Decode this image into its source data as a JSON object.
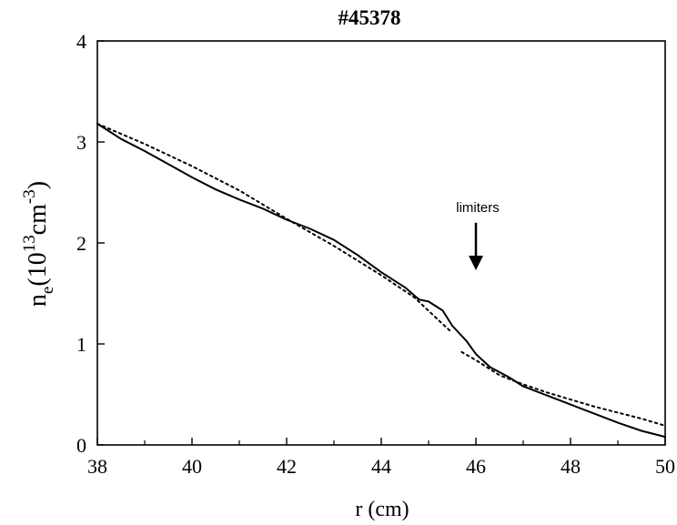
{
  "chart_data": {
    "type": "line",
    "title": "#45378",
    "xlabel": "r (cm)",
    "ylabel": {
      "base": "n",
      "sub": "e",
      "open": "(10",
      "sup1": "13",
      "unit": "cm",
      "sup2": "-3",
      "close": ")"
    },
    "xlim": [
      38,
      50
    ],
    "ylim": [
      0,
      4
    ],
    "x_ticks": [
      "38",
      "40",
      "42",
      "44",
      "46",
      "48",
      "50"
    ],
    "y_ticks": [
      "0",
      "1",
      "2",
      "3",
      "4"
    ],
    "grid": false,
    "annotation": {
      "text": "limiters",
      "arrow_x": 46,
      "arrow_from_y": 2.2,
      "arrow_to_y": 1.73
    },
    "series": [
      {
        "style": "solid",
        "color": "#000000",
        "x": [
          38.0,
          38.5,
          39.0,
          39.5,
          40.0,
          40.5,
          41.0,
          41.5,
          42.0,
          42.5,
          43.0,
          43.5,
          44.0,
          44.5,
          44.8,
          45.0,
          45.3,
          45.5,
          45.8,
          46.0,
          46.3,
          46.7,
          47.0,
          47.5,
          48.0,
          48.5,
          49.0,
          49.5,
          50.0
        ],
        "y": [
          3.18,
          3.03,
          2.91,
          2.78,
          2.65,
          2.53,
          2.43,
          2.34,
          2.23,
          2.14,
          2.03,
          1.88,
          1.71,
          1.56,
          1.44,
          1.42,
          1.33,
          1.18,
          1.03,
          0.9,
          0.77,
          0.67,
          0.58,
          0.49,
          0.4,
          0.31,
          0.22,
          0.14,
          0.08
        ]
      },
      {
        "style": "dotted",
        "color": "#000000",
        "x": [
          38.0,
          39.0,
          40.0,
          41.0,
          42.0,
          43.0,
          44.0,
          44.7,
          45.2,
          45.5
        ],
        "y": [
          3.18,
          2.98,
          2.76,
          2.52,
          2.24,
          1.97,
          1.68,
          1.46,
          1.24,
          1.11
        ]
      },
      {
        "style": "dotted",
        "color": "#000000",
        "x": [
          45.7,
          46.0,
          46.5,
          47.0,
          47.5,
          48.0,
          48.5,
          49.0,
          49.5,
          50.0
        ],
        "y": [
          0.92,
          0.84,
          0.69,
          0.6,
          0.52,
          0.45,
          0.38,
          0.32,
          0.26,
          0.19
        ]
      }
    ]
  }
}
